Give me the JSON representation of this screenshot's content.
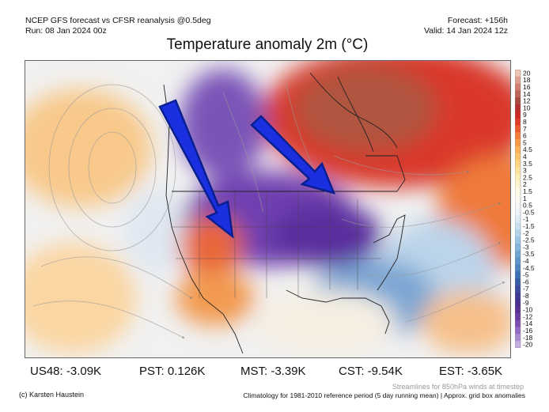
{
  "header": {
    "left_line1": "NCEP GFS forecast vs CFSR reanalysis @0.5deg",
    "left_line2": "Run: 08 Jan 2024 00z",
    "right_line1": "Forecast: +156h",
    "right_line2": "Valid: 14 Jan 2024 12z"
  },
  "title": "Temperature anomaly 2m (°C)",
  "colorbar": {
    "labels": [
      "20",
      "18",
      "16",
      "14",
      "12",
      "10",
      "9",
      "8",
      "7",
      "6",
      "5",
      "4.5",
      "4",
      "3.5",
      "3",
      "2.5",
      "2",
      "1.5",
      "1",
      "0.5",
      "-0.5",
      "-1",
      "-1.5",
      "-2",
      "-2.5",
      "-3",
      "-3.5",
      "-4",
      "-4.5",
      "-5",
      "-6",
      "-7",
      "-8",
      "-9",
      "-10",
      "-12",
      "-14",
      "-16",
      "-18",
      "-20"
    ],
    "colors": [
      "#f0c4b4",
      "#e0a090",
      "#cf7f6f",
      "#bd6455",
      "#a8493e",
      "#b8302e",
      "#cc2a26",
      "#de3a2a",
      "#ec5a32",
      "#f47c3c",
      "#f89a48",
      "#fbb259",
      "#fcc46d",
      "#fdd584",
      "#fde39d",
      "#fdeeb8",
      "#fef5d0",
      "#fef9e4",
      "#fdfbf1",
      "#f6f6f6",
      "#edf3f8",
      "#ddebf5",
      "#c8e0f0",
      "#b2d3ea",
      "#9cc5e3",
      "#86b6db",
      "#71a6d3",
      "#5e95ca",
      "#4d84c0",
      "#3f72b5",
      "#3a5fa9",
      "#3a4b9d",
      "#3e3a93",
      "#47308f",
      "#573292",
      "#6a3ea0",
      "#7e4db0",
      "#946bc2",
      "#aa8cd1",
      "#c2afe0"
    ]
  },
  "stats": [
    {
      "label": "US48: -3.09K"
    },
    {
      "label": "PST: 0.126K"
    },
    {
      "label": "MST: -3.39K"
    },
    {
      "label": "CST: -9.54K"
    },
    {
      "label": "EST: -3.65K"
    }
  ],
  "streamlines_note": "Streamlines for 850hPa winds at timestep",
  "credit": "(c) Karsten Haustein",
  "climatology_note": "Climatology for 1981-2010 reference period (5 day running mean) | Approx. grid box anomalies"
}
